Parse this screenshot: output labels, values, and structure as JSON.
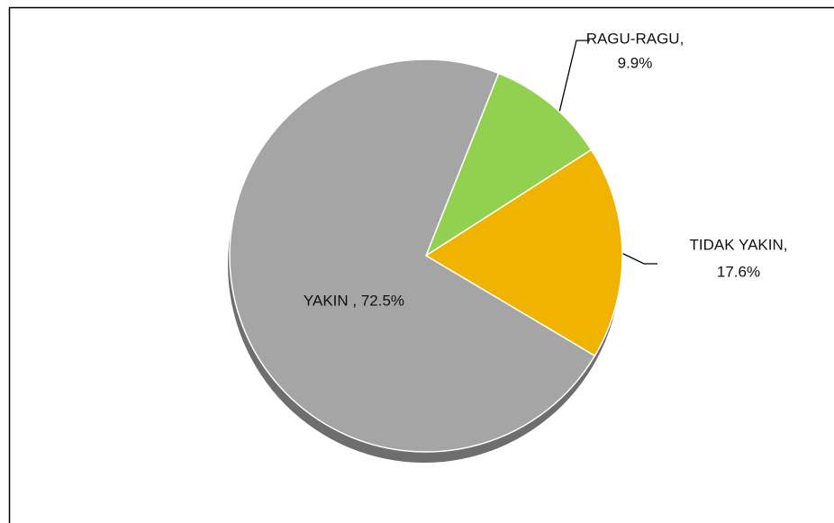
{
  "chart_data": {
    "type": "pie",
    "values": [
      72.5,
      9.9,
      17.6
    ],
    "value_labels": [
      [
        "YAKIN , 72.5%"
      ],
      [
        "RAGU-RAGU,",
        "9.9%"
      ],
      [
        "TIDAK YAKIN,",
        "17.6%"
      ]
    ],
    "colors": [
      "#a5a5a5",
      "#92d050",
      "#f0b400"
    ]
  }
}
